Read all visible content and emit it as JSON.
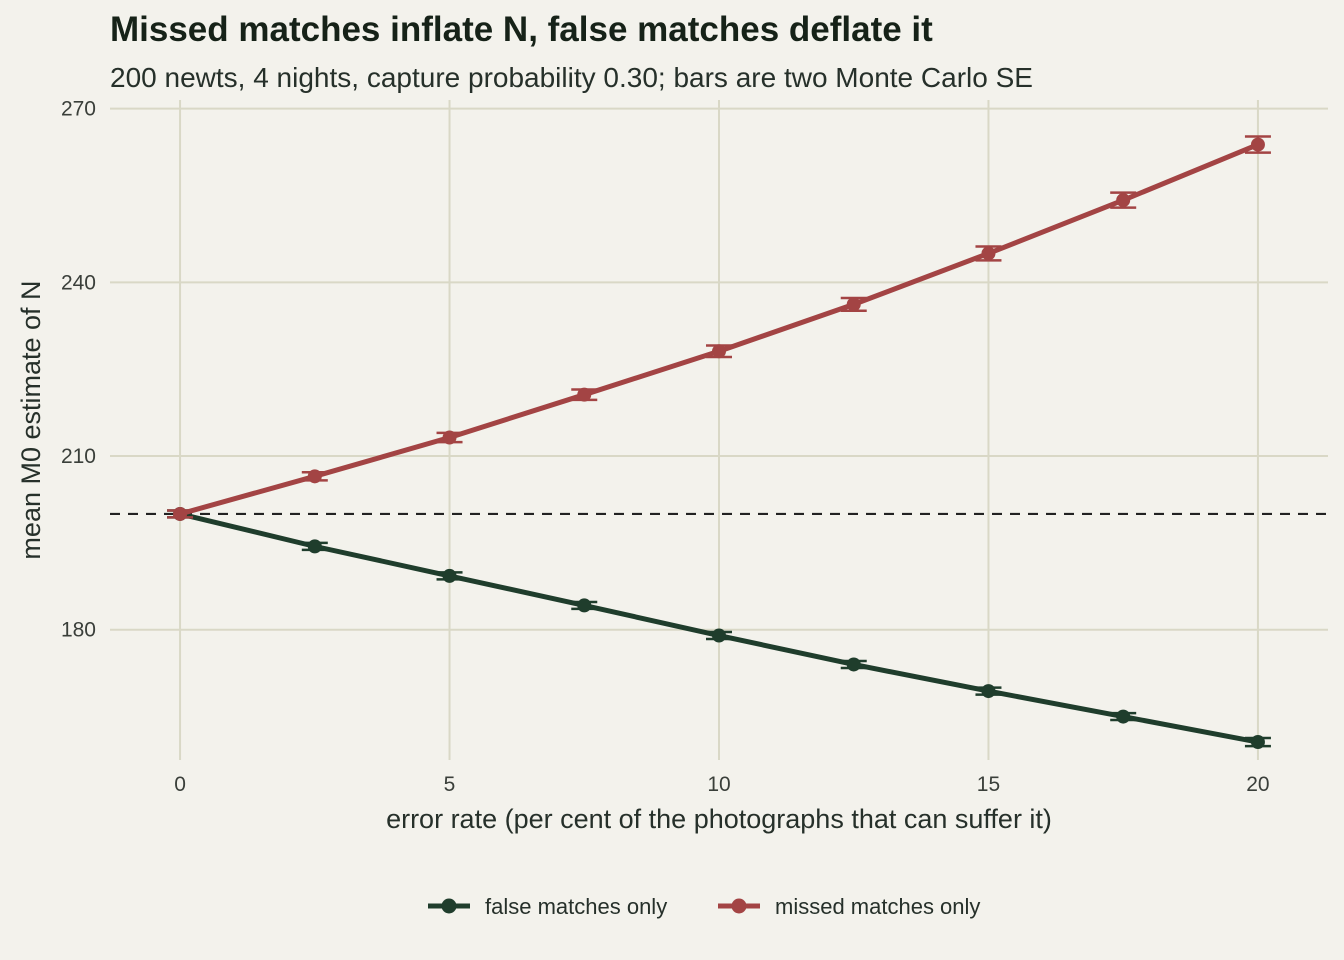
{
  "chart_data": {
    "type": "line",
    "title": "Missed matches inflate N, false matches deflate it",
    "subtitle": "200 newts, 4 nights, capture probability 0.30; bars are two Monte Carlo SE",
    "xlabel": "error rate (per cent of the photographs that can suffer it)",
    "ylabel": "mean M0 estimate of N",
    "xlim": [
      -1.3,
      21.3
    ],
    "ylim": [
      157.5,
      271.5
    ],
    "xticks": [
      0,
      5,
      10,
      15,
      20
    ],
    "yticks": [
      180,
      210,
      240,
      270
    ],
    "x": [
      0,
      2.5,
      5,
      7.5,
      10,
      12.5,
      15,
      17.5,
      20
    ],
    "reference_line": {
      "y": 200,
      "style": "dashed"
    },
    "grid": true,
    "legend_position": "bottom",
    "series": [
      {
        "name": "false matches only",
        "color": "#1f3d2c",
        "values": [
          200.0,
          194.4,
          189.3,
          184.2,
          179.0,
          174.0,
          169.4,
          165.0,
          160.6
        ],
        "se2": [
          0.6,
          0.6,
          0.6,
          0.6,
          0.6,
          0.6,
          0.6,
          0.6,
          0.7
        ]
      },
      {
        "name": "missed matches only",
        "color": "#a34444",
        "values": [
          200.0,
          206.5,
          213.2,
          220.6,
          228.1,
          236.2,
          245.0,
          254.2,
          263.8
        ],
        "se2": [
          0.6,
          0.7,
          0.8,
          0.9,
          1.0,
          1.1,
          1.2,
          1.3,
          1.4
        ]
      }
    ]
  }
}
